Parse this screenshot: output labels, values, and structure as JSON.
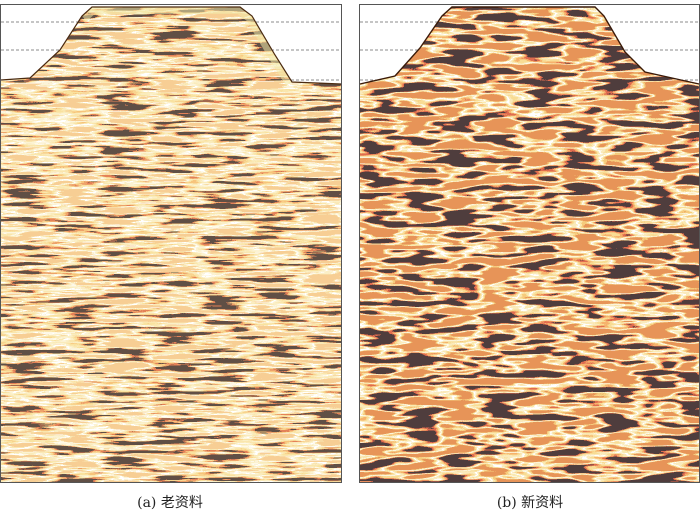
{
  "panels": [
    {
      "caption": "(a) 老资料"
    },
    {
      "caption": "(b) 新资料"
    }
  ]
}
